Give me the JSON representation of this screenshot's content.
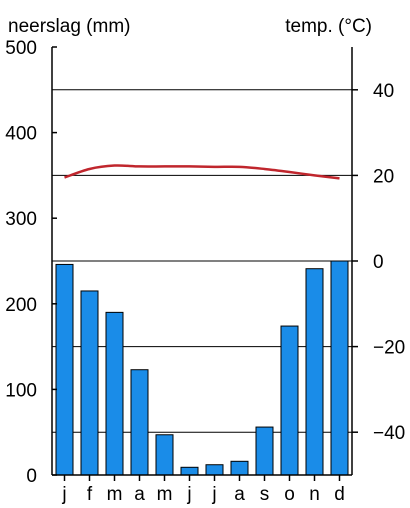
{
  "chart_data": {
    "type": "bar",
    "title": "",
    "left_axis_title": "neerslag (mm)",
    "right_axis_title": "temp. (°C)",
    "categories": [
      "j",
      "f",
      "m",
      "a",
      "m",
      "j",
      "j",
      "a",
      "s",
      "o",
      "n",
      "d"
    ],
    "series": [
      {
        "name": "neerslag",
        "type": "bar",
        "axis": "left",
        "unit": "mm",
        "color": "#1a8ce8",
        "values": [
          246,
          215,
          190,
          123,
          47,
          9,
          12,
          16,
          56,
          174,
          241,
          250
        ]
      },
      {
        "name": "temp.",
        "type": "line",
        "axis": "right",
        "unit": "°C",
        "color": "#c0262d",
        "values": [
          19.5,
          21.5,
          22.3,
          22.1,
          22.1,
          22.1,
          22.0,
          22.0,
          21.5,
          20.8,
          20.0,
          19.3
        ]
      }
    ],
    "left_axis": {
      "min": 0,
      "max": 500,
      "ticks": [
        0,
        100,
        200,
        300,
        400,
        500
      ]
    },
    "right_axis": {
      "min": -50,
      "max": 50,
      "ticks": [
        -40,
        -20,
        0,
        20,
        40
      ]
    },
    "grid": true
  }
}
